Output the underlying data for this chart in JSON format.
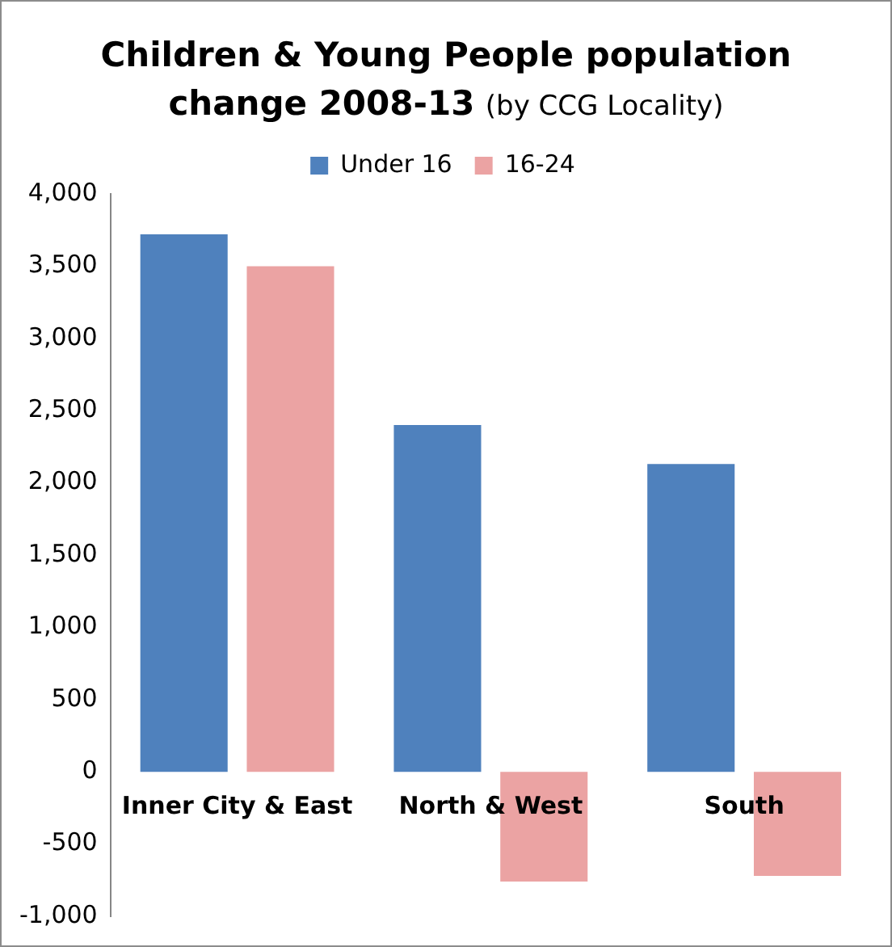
{
  "chart_data": {
    "type": "bar",
    "title": "Children & Young People population change 2008-13",
    "subtitle": "(by CCG Locality)",
    "categories": [
      "Inner City & East",
      "North & West",
      "South"
    ],
    "series": [
      {
        "name": "Under 16",
        "color": "#4f81bd",
        "values": [
          3720,
          2400,
          2130
        ]
      },
      {
        "name": "16-24",
        "color": "#eba3a3",
        "values": [
          3500,
          -760,
          -720
        ]
      }
    ],
    "ylim": [
      -1000,
      4000
    ],
    "yticks": [
      {
        "value": -1000,
        "label": "-1,000"
      },
      {
        "value": -500,
        "label": "-500"
      },
      {
        "value": 0,
        "label": "0"
      },
      {
        "value": 500,
        "label": "500"
      },
      {
        "value": 1000,
        "label": "1,000"
      },
      {
        "value": 1500,
        "label": "1,500"
      },
      {
        "value": 2000,
        "label": "2,000"
      },
      {
        "value": 2500,
        "label": "2,500"
      },
      {
        "value": 3000,
        "label": "3,000"
      },
      {
        "value": 3500,
        "label": "3,500"
      },
      {
        "value": 4000,
        "label": "4,000"
      }
    ],
    "grid": false,
    "legend": "top"
  }
}
